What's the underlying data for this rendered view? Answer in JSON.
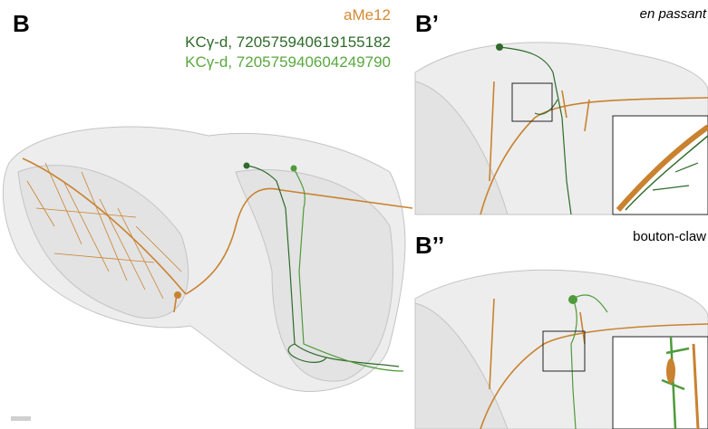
{
  "panel_b": {
    "label": "B",
    "legend": [
      "aMe12",
      "KCγ-d, 720575940619155182",
      "KCγ-d, 720575940604249790"
    ]
  },
  "panel_b1": {
    "label": "B’",
    "caption": "en passant"
  },
  "panel_b2": {
    "label": "B’’",
    "caption": "bouton-claw"
  }
}
